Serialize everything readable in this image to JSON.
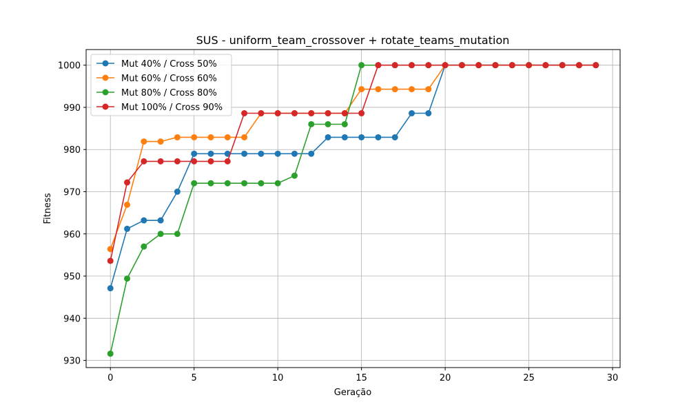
{
  "chart_data": {
    "type": "line",
    "title": "SUS - uniform_team_crossover + rotate_teams_mutation",
    "xlabel": "Geração",
    "ylabel": "Fitness",
    "xlim": [
      -1.45,
      30.45
    ],
    "ylim": [
      928.3,
      1003.7
    ],
    "xticks": [
      0,
      5,
      10,
      15,
      20,
      25,
      30
    ],
    "yticks": [
      930,
      940,
      950,
      960,
      970,
      980,
      990,
      1000
    ],
    "grid": true,
    "legend_position": "top-left",
    "x": [
      0,
      1,
      2,
      3,
      4,
      5,
      6,
      7,
      8,
      9,
      10,
      11,
      12,
      13,
      14,
      15,
      16,
      17,
      18,
      19,
      20,
      21,
      22,
      23,
      24,
      25,
      26,
      27,
      28,
      29
    ],
    "series": [
      {
        "name": "Mut 40% / Cross 50%",
        "color": "#1f77b4",
        "values": [
          947.1,
          961.2,
          963.2,
          963.2,
          970.0,
          979.0,
          979.0,
          979.0,
          979.0,
          979.0,
          979.0,
          979.0,
          979.0,
          982.9,
          982.9,
          982.9,
          982.9,
          982.9,
          988.6,
          988.6,
          1000,
          1000,
          1000,
          1000,
          1000,
          1000,
          1000,
          1000,
          1000,
          1000
        ]
      },
      {
        "name": "Mut 60% / Cross 60%",
        "color": "#ff7f0e",
        "values": [
          956.4,
          966.9,
          981.9,
          981.9,
          982.9,
          982.9,
          982.9,
          982.9,
          982.9,
          988.6,
          988.6,
          988.6,
          988.6,
          988.6,
          988.6,
          994.3,
          994.3,
          994.3,
          994.3,
          994.3,
          1000,
          1000,
          1000,
          1000,
          1000,
          1000,
          1000,
          1000,
          1000,
          1000
        ]
      },
      {
        "name": "Mut 80% / Cross 80%",
        "color": "#2ca02c",
        "values": [
          931.6,
          949.4,
          957.0,
          960.0,
          960.0,
          972.0,
          972.0,
          972.0,
          972.0,
          972.0,
          972.0,
          973.8,
          986.0,
          986.0,
          986.0,
          1000,
          1000,
          1000,
          1000,
          1000,
          1000,
          1000,
          1000,
          1000,
          1000,
          1000,
          1000,
          1000,
          1000,
          1000
        ]
      },
      {
        "name": "Mut 100% / Cross 90%",
        "color": "#d62728",
        "values": [
          953.6,
          972.2,
          977.2,
          977.2,
          977.2,
          977.2,
          977.2,
          977.2,
          988.6,
          988.6,
          988.6,
          988.6,
          988.6,
          988.6,
          988.6,
          988.6,
          1000,
          1000,
          1000,
          1000,
          1000,
          1000,
          1000,
          1000,
          1000,
          1000,
          1000,
          1000,
          1000,
          1000
        ]
      }
    ]
  }
}
